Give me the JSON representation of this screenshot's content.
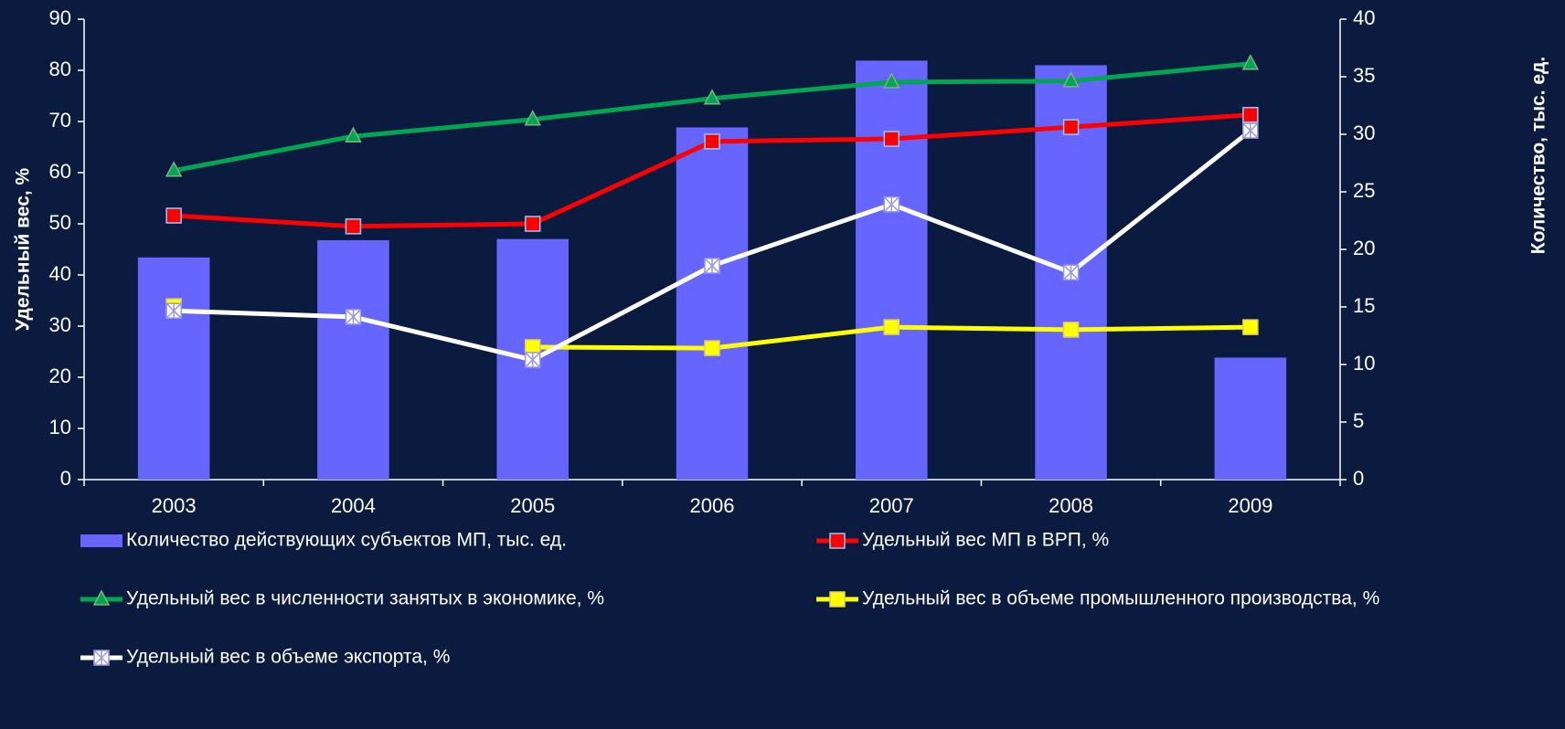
{
  "chart_data": {
    "type": "combo",
    "categories": [
      "2003",
      "2004",
      "2005",
      "2006",
      "2007",
      "2008",
      "2009"
    ],
    "ylabel": "Удельный вес, %",
    "y2label": "Количество, тыс. ед.",
    "ylim": [
      0,
      90
    ],
    "yticks": [
      0,
      10,
      20,
      30,
      40,
      50,
      60,
      70,
      80,
      90
    ],
    "y2lim": [
      0,
      40
    ],
    "y2ticks": [
      0,
      5,
      10,
      15,
      20,
      25,
      30,
      35,
      40
    ],
    "series": [
      {
        "name": "Количество действующих субъектов МП, тыс. ед.",
        "type": "bar",
        "axis": "y2",
        "color": "#6666ff",
        "values": [
          19.3,
          20.8,
          20.9,
          30.6,
          36.4,
          36.0,
          10.6
        ]
      },
      {
        "name": "Удельный вес МП в ВРП, %",
        "type": "line",
        "marker": "square",
        "color": "#ff0000",
        "marker_edge": "#8fc8ff",
        "values": [
          51.6,
          49.5,
          50.0,
          66.1,
          66.6,
          68.9,
          71.3
        ]
      },
      {
        "name": "Удельный вес в численности занятых в экономике, %",
        "type": "line",
        "marker": "triangle",
        "color": "#00a651",
        "marker_edge": "#7fb07f",
        "values": [
          60.4,
          67.1,
          70.4,
          74.5,
          77.7,
          77.9,
          81.3
        ]
      },
      {
        "name": "Удельный вес в объеме промышленного производства, %",
        "type": "line",
        "marker": "square",
        "color": "#ffff00",
        "marker_edge": "#e0d060",
        "values": [
          33.9,
          null,
          25.9,
          25.7,
          29.8,
          29.3,
          29.8
        ]
      },
      {
        "name": "Удельный вес в объеме экспорта, %",
        "type": "line",
        "marker": "xsquare",
        "color": "#ffffff",
        "marker_edge": "#9999dd",
        "values": [
          33.0,
          31.8,
          23.4,
          41.8,
          53.8,
          40.5,
          68.2
        ]
      }
    ]
  }
}
